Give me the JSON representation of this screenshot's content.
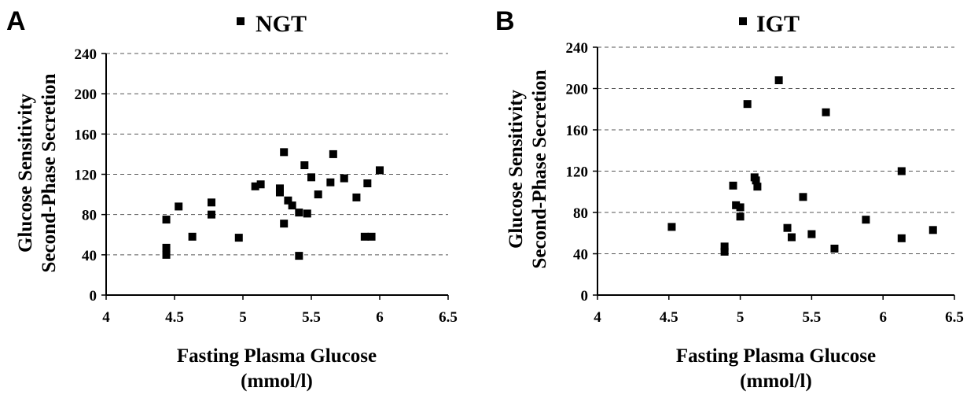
{
  "chart_data": [
    {
      "type": "scatter",
      "panel_label": "A",
      "legend": [
        "NGT"
      ],
      "xlabel_line1": "Fasting Plasma Glucose",
      "xlabel_line2": "(mmol/l)",
      "ylabel_line1": "Glucose Sensitivity",
      "ylabel_line2": "Second-Phase Secretion",
      "xlim": [
        4,
        6.5
      ],
      "ylim": [
        0,
        240
      ],
      "x_ticks": [
        "4",
        "4.5",
        "5",
        "5.5",
        "6",
        "6.5"
      ],
      "y_ticks": [
        "0",
        "40",
        "80",
        "120",
        "160",
        "200",
        "240"
      ],
      "grid": true,
      "legend_position": "top-center",
      "series": [
        {
          "name": "NGT",
          "marker": "square",
          "color": "#000000",
          "points": [
            [
              4.44,
              75
            ],
            [
              4.44,
              47
            ],
            [
              4.44,
              40
            ],
            [
              4.53,
              88
            ],
            [
              4.63,
              58
            ],
            [
              4.77,
              92
            ],
            [
              4.77,
              80
            ],
            [
              4.97,
              57
            ],
            [
              5.09,
              108
            ],
            [
              5.13,
              110
            ],
            [
              5.27,
              106
            ],
            [
              5.27,
              102
            ],
            [
              5.3,
              142
            ],
            [
              5.3,
              71
            ],
            [
              5.33,
              94
            ],
            [
              5.36,
              89
            ],
            [
              5.41,
              82
            ],
            [
              5.41,
              39
            ],
            [
              5.45,
              129
            ],
            [
              5.47,
              81
            ],
            [
              5.5,
              117
            ],
            [
              5.55,
              100
            ],
            [
              5.64,
              112
            ],
            [
              5.66,
              140
            ],
            [
              5.74,
              116
            ],
            [
              5.83,
              97
            ],
            [
              5.89,
              58
            ],
            [
              5.91,
              111
            ],
            [
              5.94,
              58
            ],
            [
              6.0,
              124
            ]
          ]
        }
      ]
    },
    {
      "type": "scatter",
      "panel_label": "B",
      "legend": [
        "IGT"
      ],
      "xlabel_line1": "Fasting Plasma Glucose",
      "xlabel_line2": "(mmol/l)",
      "ylabel_line1": "Glucose Sensitivity",
      "ylabel_line2": "Second-Phase Secretion",
      "xlim": [
        4,
        6.5
      ],
      "ylim": [
        0,
        240
      ],
      "x_ticks": [
        "4",
        "4.5",
        "5",
        "5.5",
        "6",
        "6.5"
      ],
      "y_ticks": [
        "0",
        "40",
        "80",
        "120",
        "160",
        "200",
        "240"
      ],
      "grid": true,
      "legend_position": "top-center",
      "series": [
        {
          "name": "IGT",
          "marker": "square",
          "color": "#000000",
          "points": [
            [
              4.52,
              66
            ],
            [
              4.89,
              47
            ],
            [
              4.89,
              42
            ],
            [
              4.95,
              106
            ],
            [
              4.97,
              87
            ],
            [
              5.0,
              85
            ],
            [
              5.0,
              76
            ],
            [
              5.05,
              185
            ],
            [
              5.1,
              114
            ],
            [
              5.11,
              111
            ],
            [
              5.12,
              105
            ],
            [
              5.27,
              208
            ],
            [
              5.33,
              65
            ],
            [
              5.36,
              56
            ],
            [
              5.44,
              95
            ],
            [
              5.5,
              59
            ],
            [
              5.6,
              177
            ],
            [
              5.66,
              45
            ],
            [
              5.88,
              73
            ],
            [
              6.13,
              120
            ],
            [
              6.13,
              55
            ],
            [
              6.35,
              63
            ]
          ]
        }
      ]
    }
  ]
}
